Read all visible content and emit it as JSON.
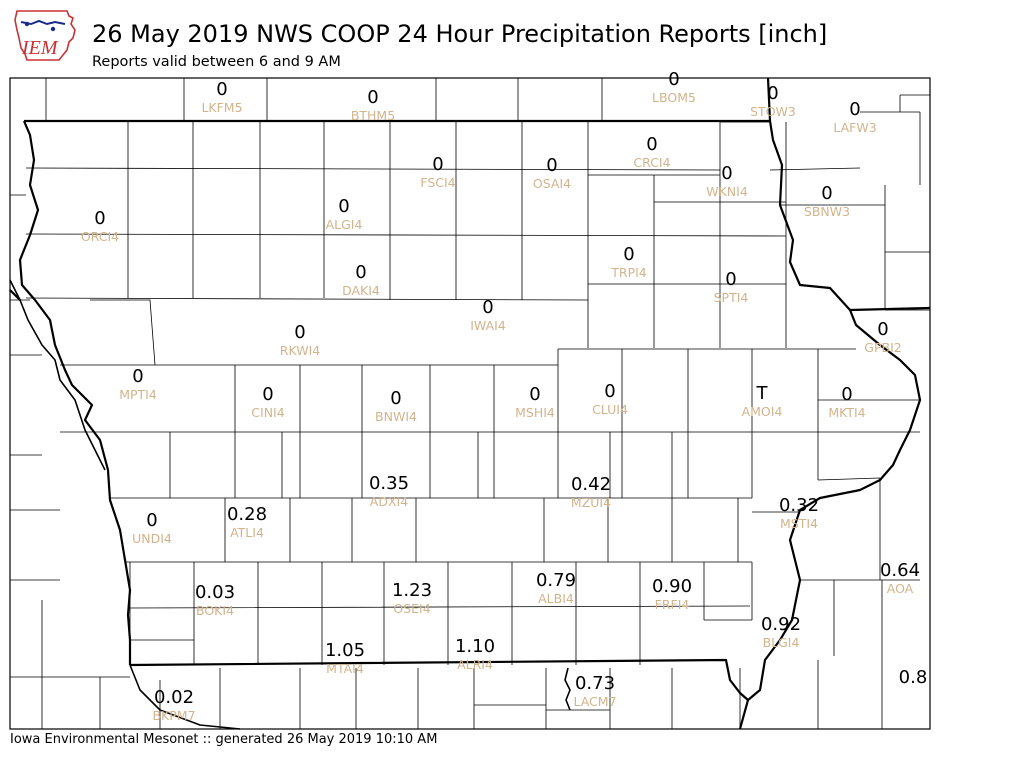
{
  "logo": {
    "text": "IEM"
  },
  "title": "26 May 2019 NWS COOP 24 Hour Precipitation Reports [inch]",
  "subtitle": "Reports valid between 6 and 9 AM",
  "footer": "Iowa Environmental Mesonet :: generated 26 May 2019 10:10 AM",
  "stations": [
    {
      "id": "LKFM5",
      "value": "0"
    },
    {
      "id": "BTHM5",
      "value": "0"
    },
    {
      "id": "LBOM5",
      "value": "0"
    },
    {
      "id": "STOW3",
      "value": "0"
    },
    {
      "id": "LAFW3",
      "value": "0"
    },
    {
      "id": "CRCI4",
      "value": "0"
    },
    {
      "id": "FSCI4",
      "value": "0"
    },
    {
      "id": "OSAI4",
      "value": "0"
    },
    {
      "id": "WKNI4",
      "value": "0"
    },
    {
      "id": "SBNW3",
      "value": "0"
    },
    {
      "id": "ORCI4",
      "value": "0"
    },
    {
      "id": "ALGI4",
      "value": "0"
    },
    {
      "id": "TRPI4",
      "value": "0"
    },
    {
      "id": "SPTI4",
      "value": "0"
    },
    {
      "id": "DAKI4",
      "value": "0"
    },
    {
      "id": "IWAI4",
      "value": "0"
    },
    {
      "id": "RKWI4",
      "value": "0"
    },
    {
      "id": "GPBI2",
      "value": "0"
    },
    {
      "id": "MPTI4",
      "value": "0"
    },
    {
      "id": "CINI4",
      "value": "0"
    },
    {
      "id": "BNWI4",
      "value": "0"
    },
    {
      "id": "MSHI4",
      "value": "0"
    },
    {
      "id": "CLUI4",
      "value": "0"
    },
    {
      "id": "AMOI4",
      "value": "T"
    },
    {
      "id": "MKTI4",
      "value": "0"
    },
    {
      "id": "ADXI4",
      "value": "0.35"
    },
    {
      "id": "MZUI4",
      "value": "0.42"
    },
    {
      "id": "UNDI4",
      "value": "0"
    },
    {
      "id": "ATLI4",
      "value": "0.28"
    },
    {
      "id": "MSTI4",
      "value": "0.32"
    },
    {
      "id": "AOA",
      "value": "0.64"
    },
    {
      "id": "BOKI4",
      "value": "0.03"
    },
    {
      "id": "OSEI4",
      "value": "1.23"
    },
    {
      "id": "ALBI4",
      "value": "0.79"
    },
    {
      "id": "FRFI4",
      "value": "0.90"
    },
    {
      "id": "BLGI4",
      "value": "0.92"
    },
    {
      "id": "MTAI4",
      "value": "1.05"
    },
    {
      "id": "ALRI4",
      "value": "1.10"
    },
    {
      "id": "LACM7",
      "value": "0.73"
    },
    {
      "id": "",
      "value": "0.8"
    },
    {
      "id": "BKPM7",
      "value": "0.02"
    }
  ]
}
